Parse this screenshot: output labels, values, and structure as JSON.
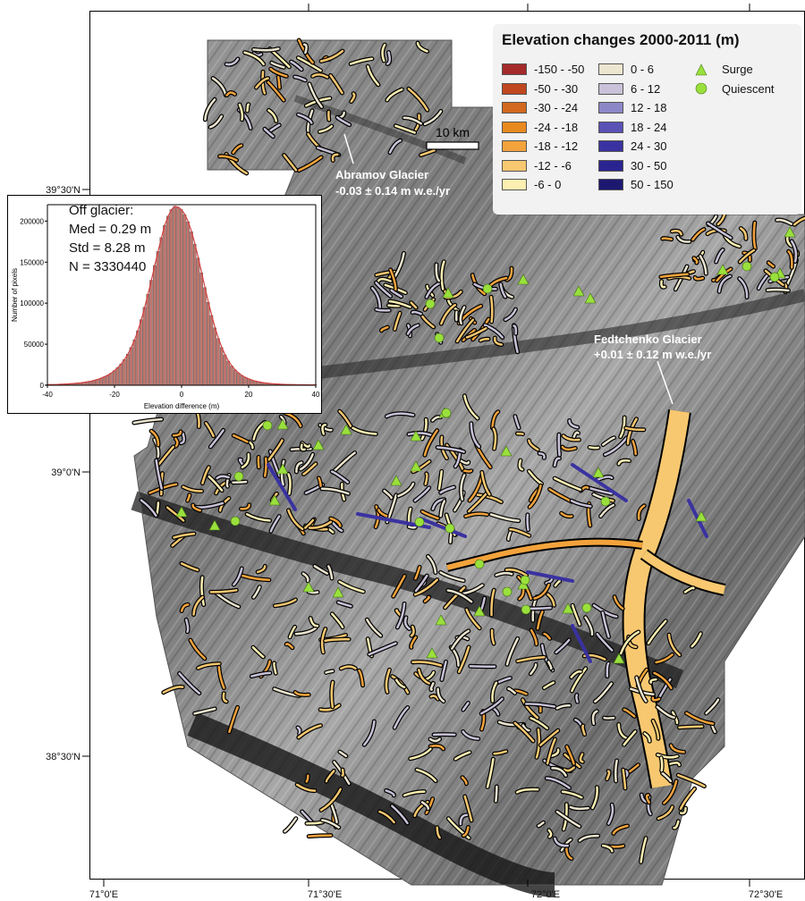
{
  "legend": {
    "title": "Elevation changes 2000-2011 (m)",
    "classes": [
      {
        "label": "-150 - -50",
        "color": "#a52a2a"
      },
      {
        "label": "-50 - -30",
        "color": "#c0471f"
      },
      {
        "label": "-30 - -24",
        "color": "#d2691e"
      },
      {
        "label": "-24 - -18",
        "color": "#e88a1e"
      },
      {
        "label": "-18 - -12",
        "color": "#f3a33c"
      },
      {
        "label": "-12 - -6",
        "color": "#f8c870"
      },
      {
        "label": "-6 - 0",
        "color": "#fdefb2"
      },
      {
        "label": "0 - 6",
        "color": "#ece5cf"
      },
      {
        "label": "6 - 12",
        "color": "#c9c2d8"
      },
      {
        "label": "12 - 18",
        "color": "#8c88c8"
      },
      {
        "label": "18 - 24",
        "color": "#5a52b5"
      },
      {
        "label": "24 - 30",
        "color": "#3a32a0"
      },
      {
        "label": "30 - 50",
        "color": "#2a2490"
      },
      {
        "label": "50 - 150",
        "color": "#1c1870"
      }
    ],
    "symbols": [
      {
        "label": "Surge",
        "shape": "triangle",
        "color": "#9ae03c"
      },
      {
        "label": "Quiescent",
        "shape": "circle",
        "color": "#9ae03c"
      }
    ]
  },
  "scale_bar": {
    "label": "10 km"
  },
  "callouts": {
    "abramov": {
      "name": "Abramov Glacier",
      "value": "-0.03 ± 0.14 m w.e./yr"
    },
    "fedtchenko": {
      "name": "Fedtchenko Glacier",
      "value": "+0.01 ± 0.12 m w.e./yr"
    }
  },
  "axes": {
    "lat_labels": [
      "39°30'N",
      "39°0'N",
      "38°30'N"
    ],
    "lon_labels": [
      "71°0'E",
      "71°30'E",
      "72°0'E",
      "72°30'E"
    ]
  },
  "histogram": {
    "stats": {
      "heading": "Off glacier:",
      "median": "Med = 0.29 m",
      "std": "Std = 8.28 m",
      "n": "N = 3330440"
    },
    "xlabel": "Elevation difference (m)",
    "ylabel": "Number of pixels",
    "xticks": [
      "-40",
      "-20",
      "0",
      "20",
      "40"
    ],
    "yticks": [
      "0",
      "50000",
      "100000",
      "150000",
      "200000"
    ],
    "bar_color": "#c0766e",
    "fit_color": "#d04040"
  },
  "chart_data": {
    "type": "bar",
    "xlabel": "Elevation difference (m)",
    "ylabel": "Number of pixels",
    "xlim": [
      -40,
      40
    ],
    "ylim": [
      0,
      220000
    ],
    "bin_centers": [
      -40,
      -39,
      -38,
      -37,
      -36,
      -35,
      -34,
      -33,
      -32,
      -31,
      -30,
      -29,
      -28,
      -27,
      -26,
      -25,
      -24,
      -23,
      -22,
      -21,
      -20,
      -19,
      -18,
      -17,
      -16,
      -15,
      -14,
      -13,
      -12,
      -11,
      -10,
      -9,
      -8,
      -7,
      -6,
      -5,
      -4,
      -3,
      -2,
      -1,
      0,
      1,
      2,
      3,
      4,
      5,
      6,
      7,
      8,
      9,
      10,
      11,
      12,
      13,
      14,
      15,
      16,
      17,
      18,
      19,
      20,
      21,
      22,
      23,
      24,
      25,
      26,
      27,
      28,
      29,
      30,
      31,
      32,
      33,
      34,
      35,
      36,
      37,
      38,
      39,
      40
    ],
    "values": [
      700,
      800,
      900,
      1000,
      1200,
      1400,
      1600,
      1900,
      2200,
      2600,
      3000,
      3600,
      4200,
      5000,
      6000,
      7200,
      8600,
      10300,
      12300,
      14700,
      17800,
      21600,
      26000,
      31500,
      38000,
      46000,
      55500,
      66500,
      80000,
      95000,
      111000,
      128000,
      146000,
      163000,
      180000,
      195000,
      206000,
      214000,
      218000,
      217000,
      214000,
      208000,
      199000,
      187000,
      172000,
      155000,
      137000,
      119000,
      101000,
      85000,
      70000,
      57000,
      46000,
      37000,
      29500,
      23500,
      18800,
      15000,
      12000,
      9700,
      7800,
      6300,
      5100,
      4200,
      3400,
      2800,
      2300,
      1900,
      1600,
      1350,
      1150,
      1000,
      880,
      780,
      700,
      630,
      570,
      520,
      480,
      450,
      420
    ]
  }
}
